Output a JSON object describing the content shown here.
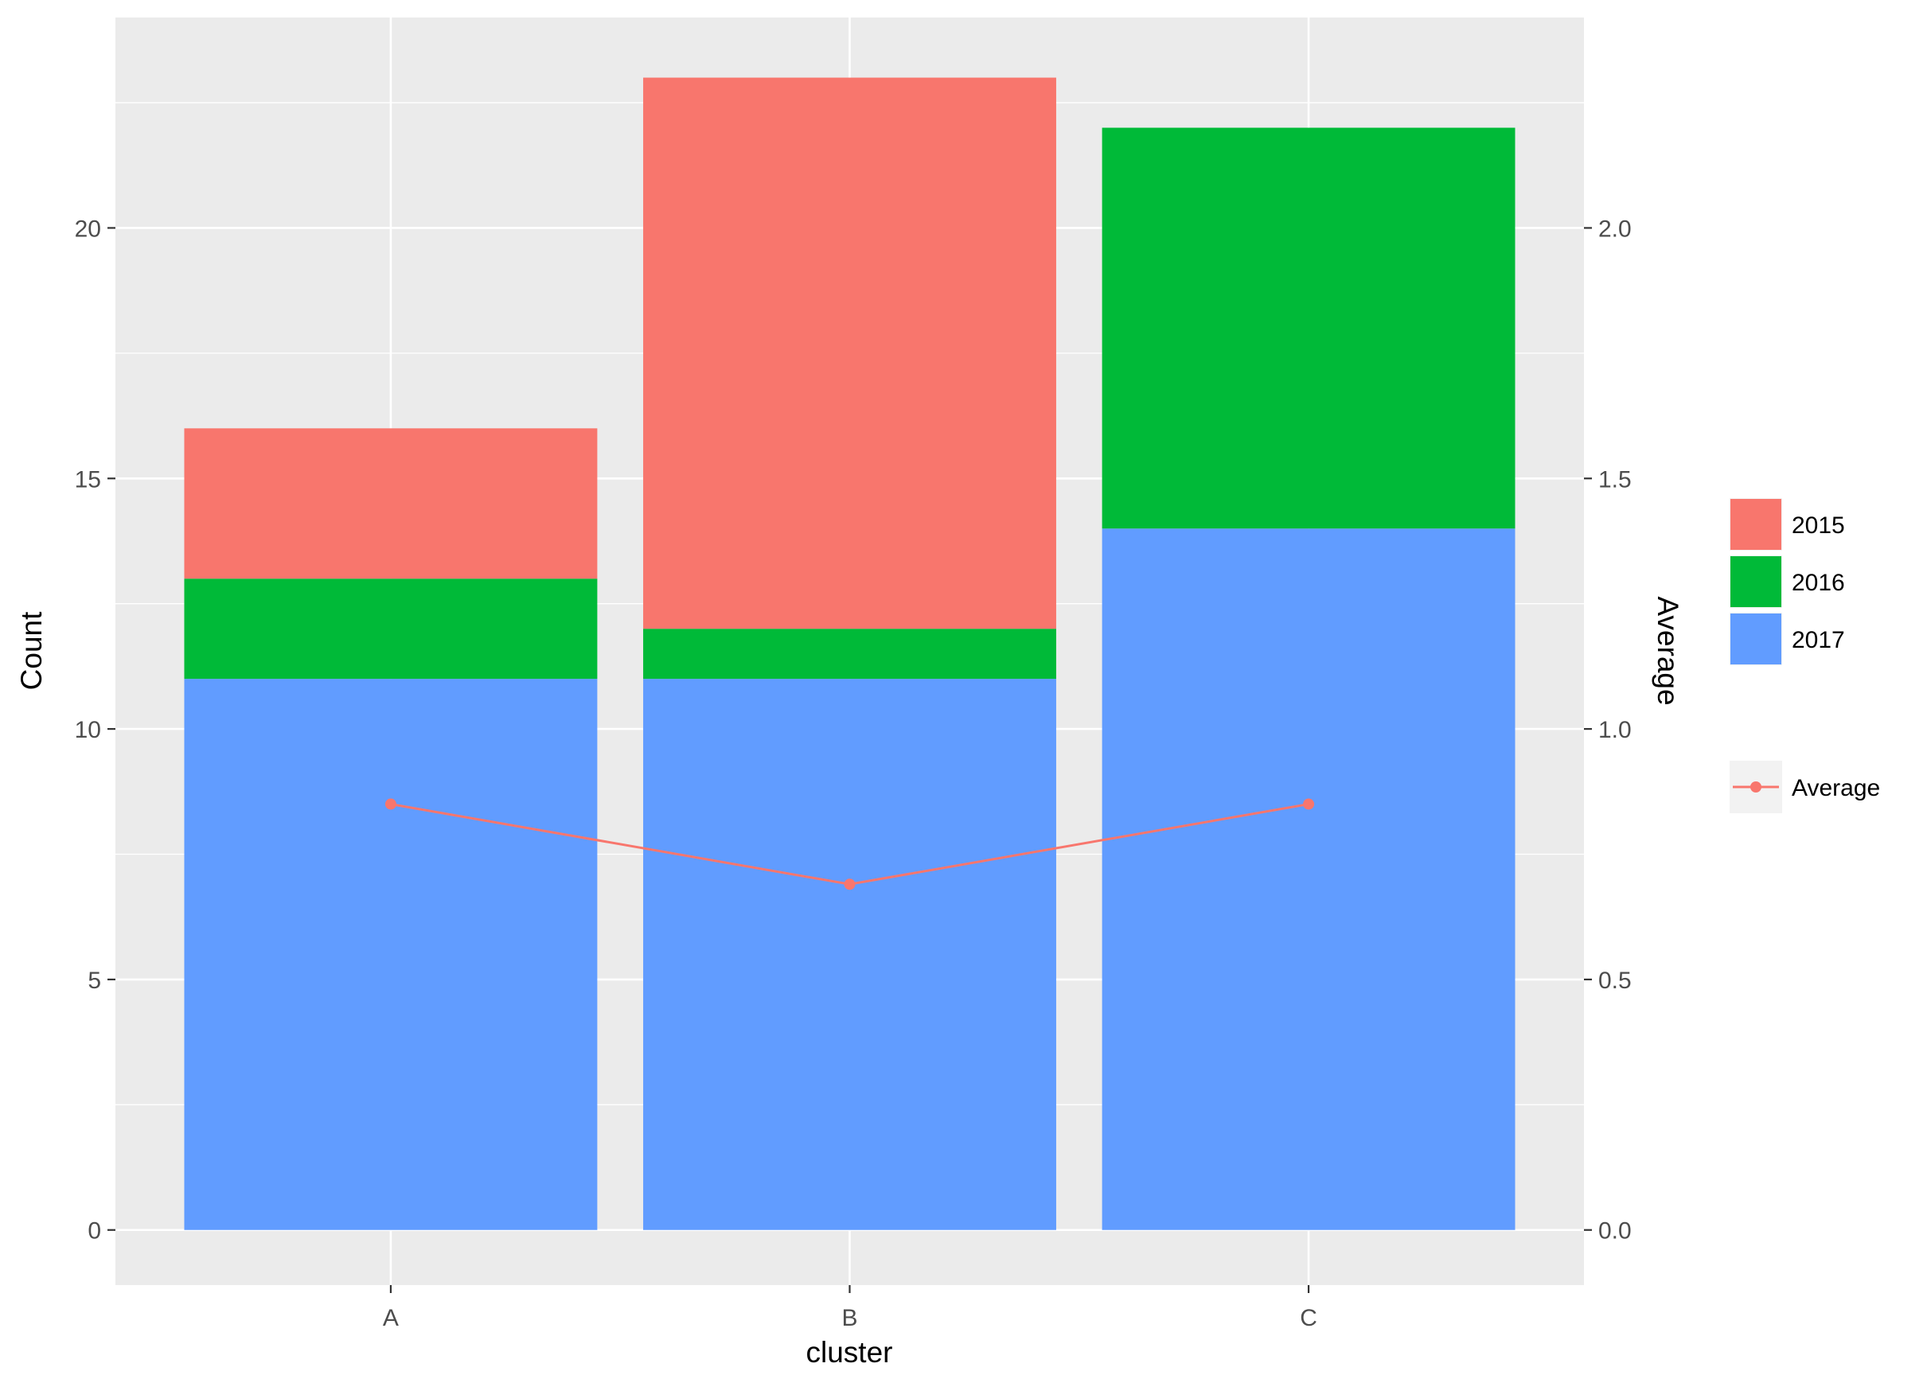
{
  "chart_data": {
    "type": "bar",
    "stacked": true,
    "title": "",
    "xlabel": "cluster",
    "ylabel": "Count",
    "y2label": "Average",
    "categories": [
      "A",
      "B",
      "C"
    ],
    "ylim": [
      -1.1,
      24.2
    ],
    "y2lim": [
      -0.11,
      2.42
    ],
    "yticks": [
      0,
      5,
      10,
      15,
      20
    ],
    "yticks_labels": [
      "0",
      "5",
      "10",
      "15",
      "20"
    ],
    "y2ticks": [
      0.0,
      0.5,
      1.0,
      1.5,
      2.0
    ],
    "y2ticks_labels": [
      "0.0",
      "0.5",
      "1.0",
      "1.5",
      "2.0"
    ],
    "grid": true,
    "series": [
      {
        "name": "2017",
        "values": [
          11,
          11,
          14
        ],
        "color": "#619CFF"
      },
      {
        "name": "2016",
        "values": [
          2,
          1,
          8
        ],
        "color": "#00BA38"
      },
      {
        "name": "2015",
        "values": [
          3,
          11,
          0
        ],
        "color": "#F8766D"
      }
    ],
    "line_series": {
      "name": "Average",
      "axis": "secondary",
      "values": [
        0.85,
        0.69,
        0.85
      ],
      "color": "#F8766D"
    },
    "legend": {
      "placement": "right",
      "fill_entries": [
        {
          "label": "2015",
          "color": "#F8766D"
        },
        {
          "label": "2016",
          "color": "#00BA38"
        },
        {
          "label": "2017",
          "color": "#619CFF"
        }
      ],
      "line_entries": [
        {
          "label": "Average",
          "color": "#F8766D"
        }
      ]
    },
    "panel_background": "#EBEBEB",
    "grid_color": "#FFFFFF"
  }
}
